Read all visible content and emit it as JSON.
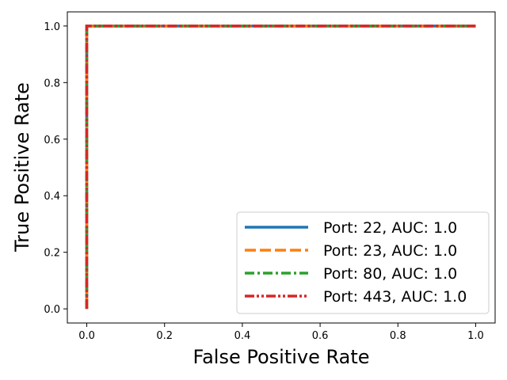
{
  "chart_data": {
    "type": "line",
    "title": "",
    "xlabel": "False Positive Rate",
    "ylabel": "True Positive Rate",
    "xlim": [
      -0.05,
      1.05
    ],
    "ylim": [
      -0.05,
      1.05
    ],
    "x_ticks": [
      "0.0",
      "0.2",
      "0.4",
      "0.6",
      "0.8",
      "1.0"
    ],
    "y_ticks": [
      "0.0",
      "0.2",
      "0.4",
      "0.6",
      "0.8",
      "1.0"
    ],
    "x_tick_values": [
      0.0,
      0.2,
      0.4,
      0.6,
      0.8,
      1.0
    ],
    "y_tick_values": [
      0.0,
      0.2,
      0.4,
      0.6,
      0.8,
      1.0
    ],
    "grid": false,
    "legend_position": "lower-right",
    "series": [
      {
        "name": "Port: 22, AUC: 1.0",
        "color": "#1f77b4",
        "style": "solid",
        "x": [
          0.0,
          0.0,
          1.0
        ],
        "y": [
          0.0,
          1.0,
          1.0
        ]
      },
      {
        "name": "Port: 23, AUC: 1.0",
        "color": "#ff7f0e",
        "style": "dashed",
        "x": [
          0.0,
          0.0,
          1.0
        ],
        "y": [
          0.0,
          1.0,
          1.0
        ]
      },
      {
        "name": "Port: 80, AUC: 1.0",
        "color": "#2ca02c",
        "style": "dashdot",
        "x": [
          0.0,
          0.0,
          1.0
        ],
        "y": [
          0.0,
          1.0,
          1.0
        ]
      },
      {
        "name": "Port: 443, AUC: 1.0",
        "color": "#d62728",
        "style": "dashdotdot",
        "x": [
          0.0,
          0.0,
          1.0
        ],
        "y": [
          0.0,
          1.0,
          1.0
        ]
      }
    ]
  }
}
